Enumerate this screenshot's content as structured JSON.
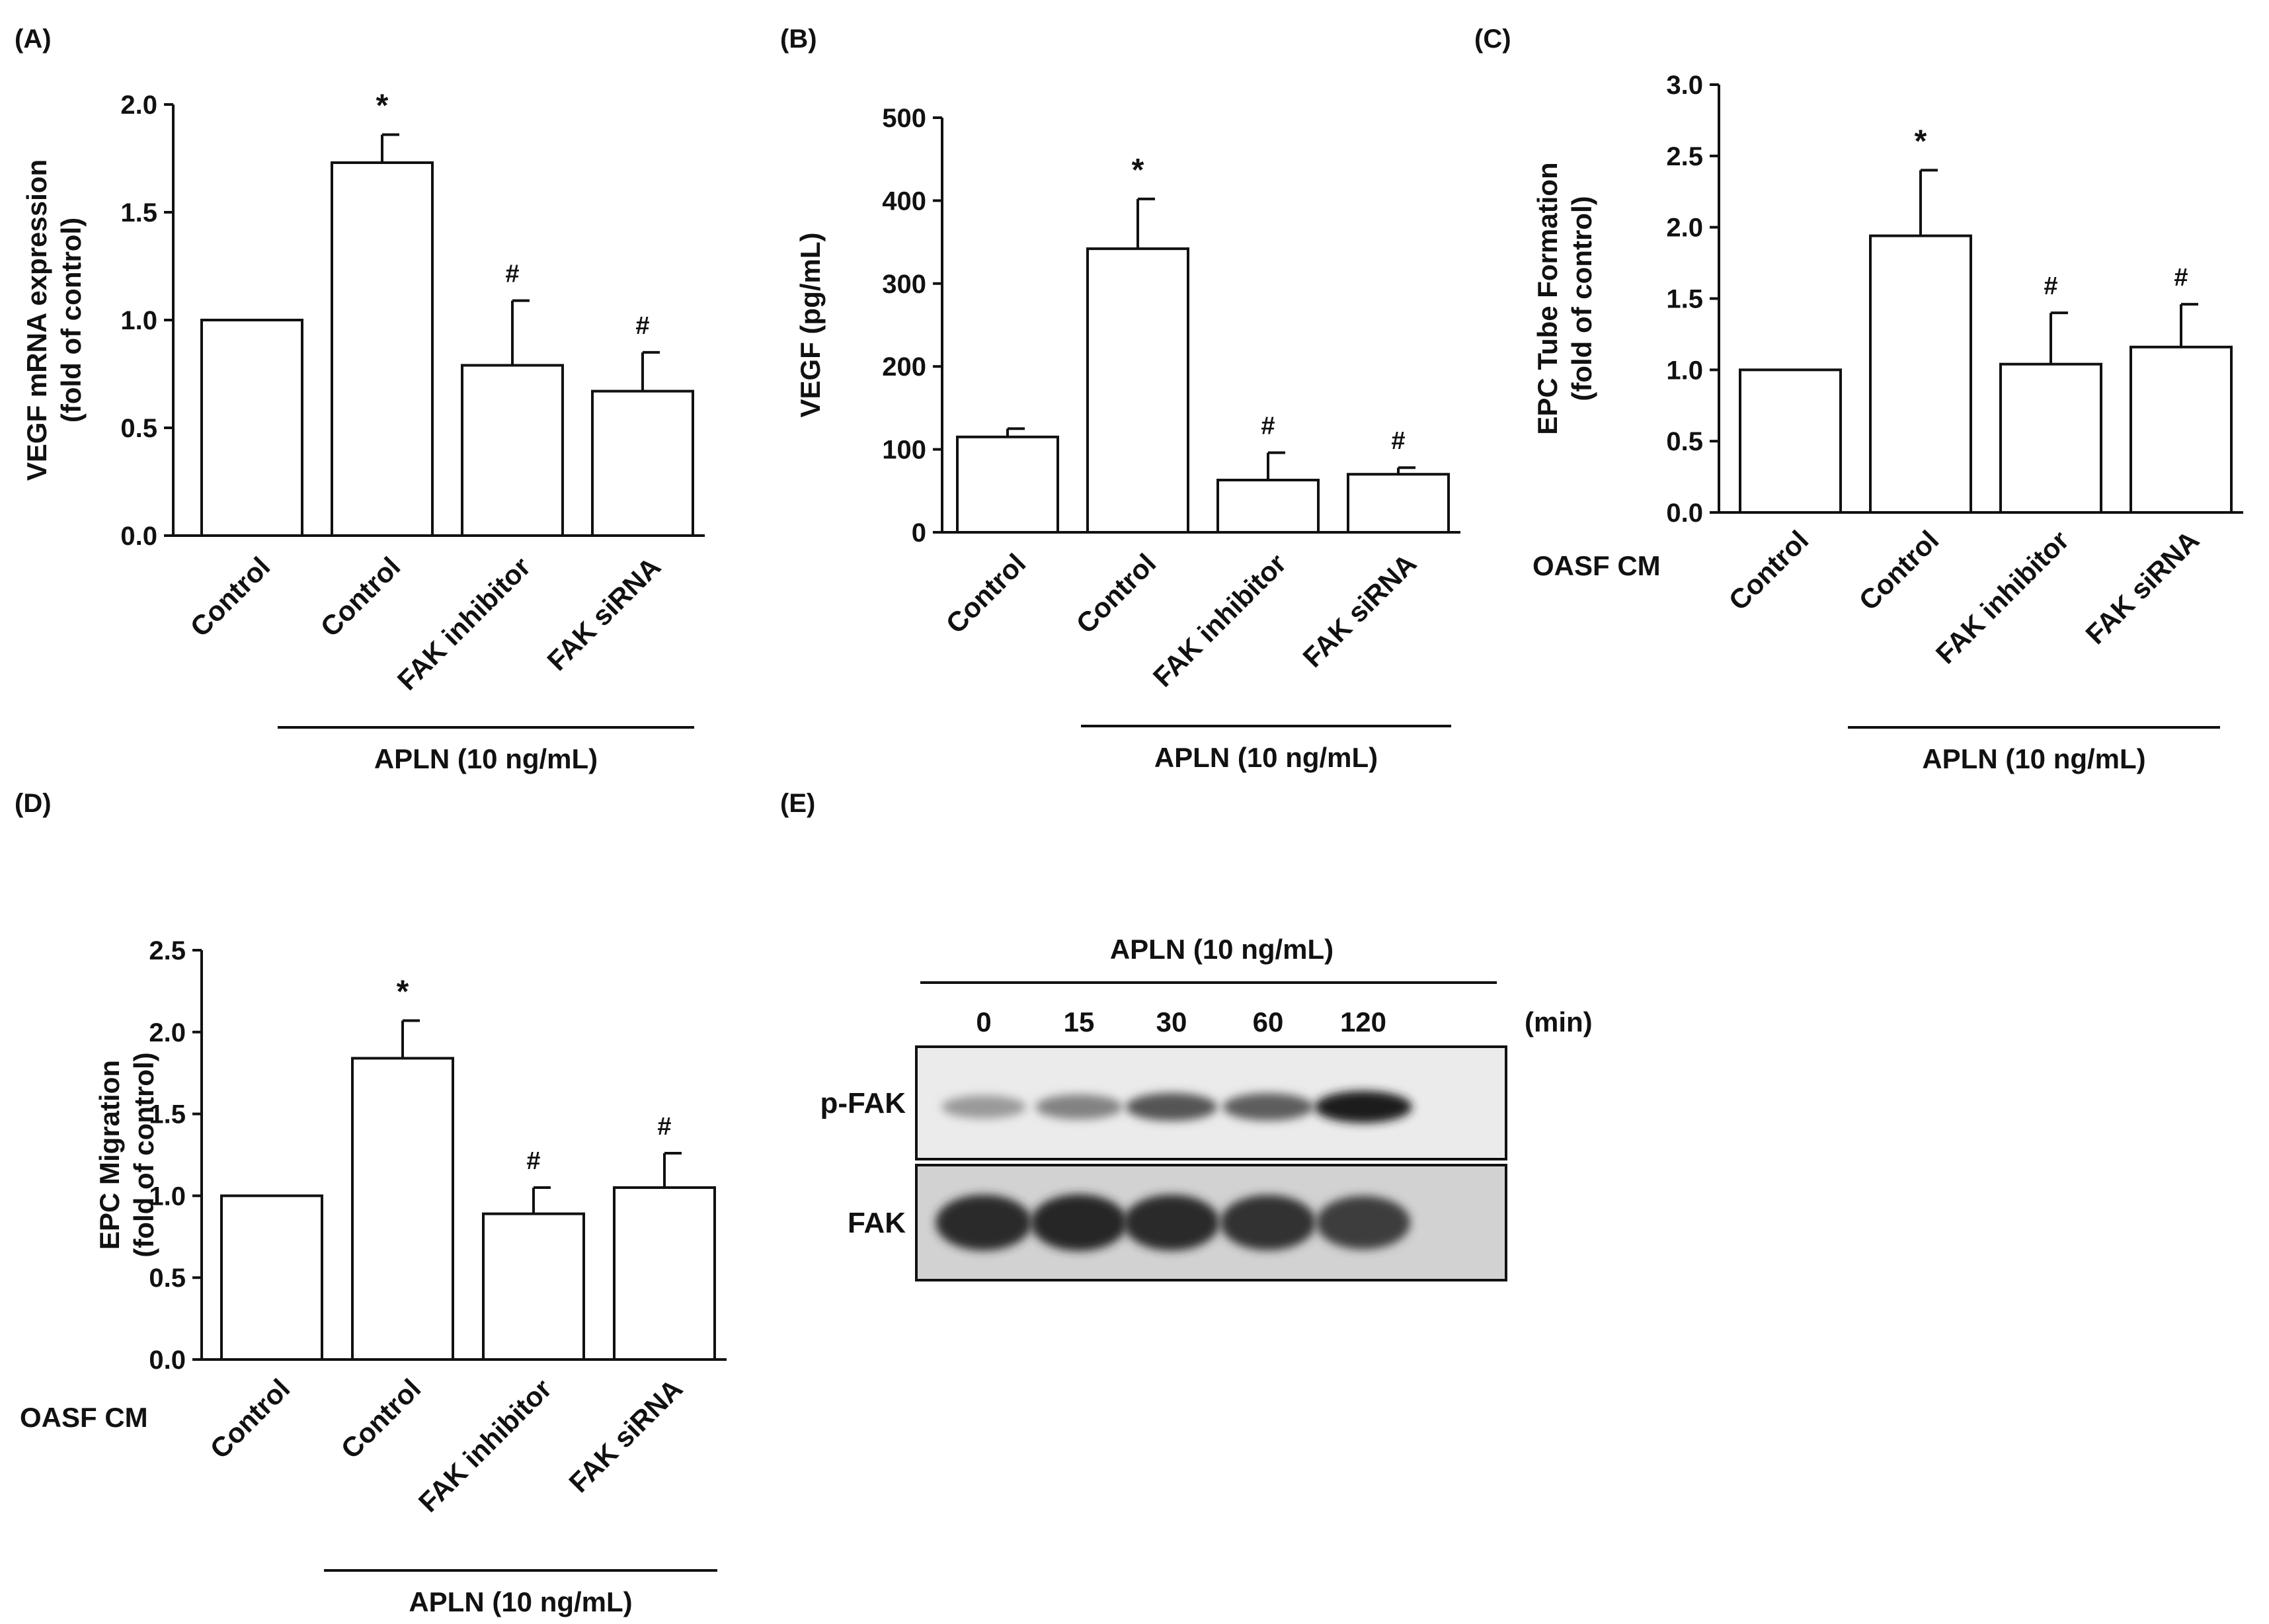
{
  "colors": {
    "ink": "#111111",
    "bar_fill": "#ffffff",
    "blot_background": "#e6e6e6"
  },
  "chart_data": [
    {
      "panel_label": "(A)",
      "type": "bar",
      "categories": [
        "Control",
        "Control",
        "FAK inhibitor",
        "FAK siRNA"
      ],
      "values": [
        1.0,
        1.73,
        0.79,
        0.67
      ],
      "errors": [
        0,
        0.13,
        0.3,
        0.18
      ],
      "significance": [
        "",
        "*",
        "#",
        "#"
      ],
      "ylabel": "VEGF mRNA expression\n(fold of control)",
      "ylim": [
        0,
        2.0
      ],
      "yticks": [
        "0.0",
        "0.5",
        "1.0",
        "1.5",
        "2.0"
      ],
      "group_prefix": "",
      "treatment_label": "APLN (10 ng/mL)",
      "treatment_span": [
        1,
        3
      ]
    },
    {
      "panel_label": "(B)",
      "type": "bar",
      "categories": [
        "Control",
        "Control",
        "FAK inhibitor",
        "FAK siRNA"
      ],
      "values": [
        115,
        342,
        63,
        70
      ],
      "errors": [
        10,
        60,
        33,
        8
      ],
      "significance": [
        "",
        "*",
        "#",
        "#"
      ],
      "ylabel": "VEGF (pg/mL)",
      "ylim": [
        0,
        500
      ],
      "yticks": [
        "0",
        "100",
        "200",
        "300",
        "400",
        "500"
      ],
      "group_prefix": "",
      "treatment_label": "APLN (10 ng/mL)",
      "treatment_span": [
        1,
        3
      ]
    },
    {
      "panel_label": "(C)",
      "type": "bar",
      "categories": [
        "Control",
        "Control",
        "FAK inhibitor",
        "FAK siRNA"
      ],
      "values": [
        1.0,
        1.94,
        1.04,
        1.16
      ],
      "errors": [
        0,
        0.46,
        0.36,
        0.3
      ],
      "significance": [
        "",
        "*",
        "#",
        "#"
      ],
      "ylabel": "EPC Tube Formation\n(fold of control)",
      "ylim": [
        0,
        3.0
      ],
      "yticks": [
        "0.0",
        "0.5",
        "1.0",
        "1.5",
        "2.0",
        "2.5",
        "3.0"
      ],
      "group_prefix": "OASF CM",
      "treatment_label": "APLN (10 ng/mL)",
      "treatment_span": [
        1,
        3
      ]
    },
    {
      "panel_label": "(D)",
      "type": "bar",
      "categories": [
        "Control",
        "Control",
        "FAK inhibitor",
        "FAK siRNA"
      ],
      "values": [
        1.0,
        1.84,
        0.89,
        1.05
      ],
      "errors": [
        0,
        0.23,
        0.16,
        0.21
      ],
      "significance": [
        "",
        "*",
        "#",
        "#"
      ],
      "ylabel": "EPC Migration\n(fold of control)",
      "ylim": [
        0,
        2.5
      ],
      "yticks": [
        "0.0",
        "0.5",
        "1.0",
        "1.5",
        "2.0",
        "2.5"
      ],
      "group_prefix": "OASF CM",
      "treatment_label": "APLN (10 ng/mL)",
      "treatment_span": [
        1,
        3
      ]
    },
    {
      "panel_label": "(E)",
      "type": "blot",
      "treatment_label": "APLN (10 ng/mL)",
      "timepoints": [
        "0",
        "15",
        "30",
        "60",
        "120"
      ],
      "time_unit": "(min)",
      "rows": [
        {
          "label": "p-FAK",
          "band_intensity": [
            0.25,
            0.38,
            0.62,
            0.58,
            0.92
          ]
        },
        {
          "label": "FAK",
          "band_intensity": [
            0.85,
            0.88,
            0.85,
            0.82,
            0.75
          ]
        }
      ]
    }
  ]
}
